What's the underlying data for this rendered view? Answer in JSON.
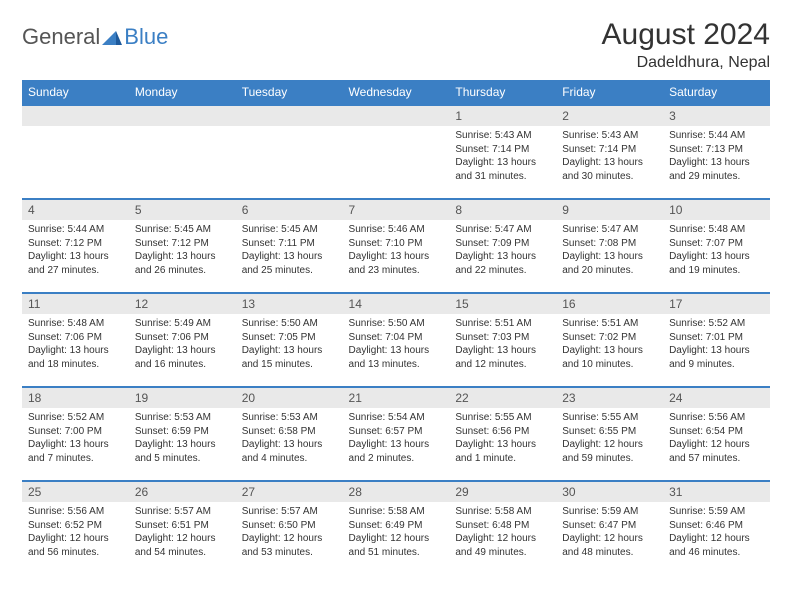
{
  "brand": {
    "part1": "General",
    "part2": "Blue"
  },
  "title": "August 2024",
  "location": "Dadeldhura, Nepal",
  "colors": {
    "header_bg": "#3b7fc4",
    "header_text": "#ffffff",
    "daynum_bg": "#e9e9e9",
    "cell_text": "#333333",
    "border": "#3b7fc4",
    "page_bg": "#ffffff",
    "logo_gray": "#555555",
    "logo_blue": "#3b7fc4"
  },
  "typography": {
    "title_fontsize": 30,
    "location_fontsize": 16,
    "header_fontsize": 12,
    "daynum_fontsize": 12,
    "body_fontsize": 10
  },
  "day_headers": [
    "Sunday",
    "Monday",
    "Tuesday",
    "Wednesday",
    "Thursday",
    "Friday",
    "Saturday"
  ],
  "weeks": [
    [
      {
        "empty": true
      },
      {
        "empty": true
      },
      {
        "empty": true
      },
      {
        "empty": true
      },
      {
        "num": "1",
        "sunrise": "Sunrise: 5:43 AM",
        "sunset": "Sunset: 7:14 PM",
        "daylight": "Daylight: 13 hours and 31 minutes."
      },
      {
        "num": "2",
        "sunrise": "Sunrise: 5:43 AM",
        "sunset": "Sunset: 7:14 PM",
        "daylight": "Daylight: 13 hours and 30 minutes."
      },
      {
        "num": "3",
        "sunrise": "Sunrise: 5:44 AM",
        "sunset": "Sunset: 7:13 PM",
        "daylight": "Daylight: 13 hours and 29 minutes."
      }
    ],
    [
      {
        "num": "4",
        "sunrise": "Sunrise: 5:44 AM",
        "sunset": "Sunset: 7:12 PM",
        "daylight": "Daylight: 13 hours and 27 minutes."
      },
      {
        "num": "5",
        "sunrise": "Sunrise: 5:45 AM",
        "sunset": "Sunset: 7:12 PM",
        "daylight": "Daylight: 13 hours and 26 minutes."
      },
      {
        "num": "6",
        "sunrise": "Sunrise: 5:45 AM",
        "sunset": "Sunset: 7:11 PM",
        "daylight": "Daylight: 13 hours and 25 minutes."
      },
      {
        "num": "7",
        "sunrise": "Sunrise: 5:46 AM",
        "sunset": "Sunset: 7:10 PM",
        "daylight": "Daylight: 13 hours and 23 minutes."
      },
      {
        "num": "8",
        "sunrise": "Sunrise: 5:47 AM",
        "sunset": "Sunset: 7:09 PM",
        "daylight": "Daylight: 13 hours and 22 minutes."
      },
      {
        "num": "9",
        "sunrise": "Sunrise: 5:47 AM",
        "sunset": "Sunset: 7:08 PM",
        "daylight": "Daylight: 13 hours and 20 minutes."
      },
      {
        "num": "10",
        "sunrise": "Sunrise: 5:48 AM",
        "sunset": "Sunset: 7:07 PM",
        "daylight": "Daylight: 13 hours and 19 minutes."
      }
    ],
    [
      {
        "num": "11",
        "sunrise": "Sunrise: 5:48 AM",
        "sunset": "Sunset: 7:06 PM",
        "daylight": "Daylight: 13 hours and 18 minutes."
      },
      {
        "num": "12",
        "sunrise": "Sunrise: 5:49 AM",
        "sunset": "Sunset: 7:06 PM",
        "daylight": "Daylight: 13 hours and 16 minutes."
      },
      {
        "num": "13",
        "sunrise": "Sunrise: 5:50 AM",
        "sunset": "Sunset: 7:05 PM",
        "daylight": "Daylight: 13 hours and 15 minutes."
      },
      {
        "num": "14",
        "sunrise": "Sunrise: 5:50 AM",
        "sunset": "Sunset: 7:04 PM",
        "daylight": "Daylight: 13 hours and 13 minutes."
      },
      {
        "num": "15",
        "sunrise": "Sunrise: 5:51 AM",
        "sunset": "Sunset: 7:03 PM",
        "daylight": "Daylight: 13 hours and 12 minutes."
      },
      {
        "num": "16",
        "sunrise": "Sunrise: 5:51 AM",
        "sunset": "Sunset: 7:02 PM",
        "daylight": "Daylight: 13 hours and 10 minutes."
      },
      {
        "num": "17",
        "sunrise": "Sunrise: 5:52 AM",
        "sunset": "Sunset: 7:01 PM",
        "daylight": "Daylight: 13 hours and 9 minutes."
      }
    ],
    [
      {
        "num": "18",
        "sunrise": "Sunrise: 5:52 AM",
        "sunset": "Sunset: 7:00 PM",
        "daylight": "Daylight: 13 hours and 7 minutes."
      },
      {
        "num": "19",
        "sunrise": "Sunrise: 5:53 AM",
        "sunset": "Sunset: 6:59 PM",
        "daylight": "Daylight: 13 hours and 5 minutes."
      },
      {
        "num": "20",
        "sunrise": "Sunrise: 5:53 AM",
        "sunset": "Sunset: 6:58 PM",
        "daylight": "Daylight: 13 hours and 4 minutes."
      },
      {
        "num": "21",
        "sunrise": "Sunrise: 5:54 AM",
        "sunset": "Sunset: 6:57 PM",
        "daylight": "Daylight: 13 hours and 2 minutes."
      },
      {
        "num": "22",
        "sunrise": "Sunrise: 5:55 AM",
        "sunset": "Sunset: 6:56 PM",
        "daylight": "Daylight: 13 hours and 1 minute."
      },
      {
        "num": "23",
        "sunrise": "Sunrise: 5:55 AM",
        "sunset": "Sunset: 6:55 PM",
        "daylight": "Daylight: 12 hours and 59 minutes."
      },
      {
        "num": "24",
        "sunrise": "Sunrise: 5:56 AM",
        "sunset": "Sunset: 6:54 PM",
        "daylight": "Daylight: 12 hours and 57 minutes."
      }
    ],
    [
      {
        "num": "25",
        "sunrise": "Sunrise: 5:56 AM",
        "sunset": "Sunset: 6:52 PM",
        "daylight": "Daylight: 12 hours and 56 minutes."
      },
      {
        "num": "26",
        "sunrise": "Sunrise: 5:57 AM",
        "sunset": "Sunset: 6:51 PM",
        "daylight": "Daylight: 12 hours and 54 minutes."
      },
      {
        "num": "27",
        "sunrise": "Sunrise: 5:57 AM",
        "sunset": "Sunset: 6:50 PM",
        "daylight": "Daylight: 12 hours and 53 minutes."
      },
      {
        "num": "28",
        "sunrise": "Sunrise: 5:58 AM",
        "sunset": "Sunset: 6:49 PM",
        "daylight": "Daylight: 12 hours and 51 minutes."
      },
      {
        "num": "29",
        "sunrise": "Sunrise: 5:58 AM",
        "sunset": "Sunset: 6:48 PM",
        "daylight": "Daylight: 12 hours and 49 minutes."
      },
      {
        "num": "30",
        "sunrise": "Sunrise: 5:59 AM",
        "sunset": "Sunset: 6:47 PM",
        "daylight": "Daylight: 12 hours and 48 minutes."
      },
      {
        "num": "31",
        "sunrise": "Sunrise: 5:59 AM",
        "sunset": "Sunset: 6:46 PM",
        "daylight": "Daylight: 12 hours and 46 minutes."
      }
    ]
  ]
}
